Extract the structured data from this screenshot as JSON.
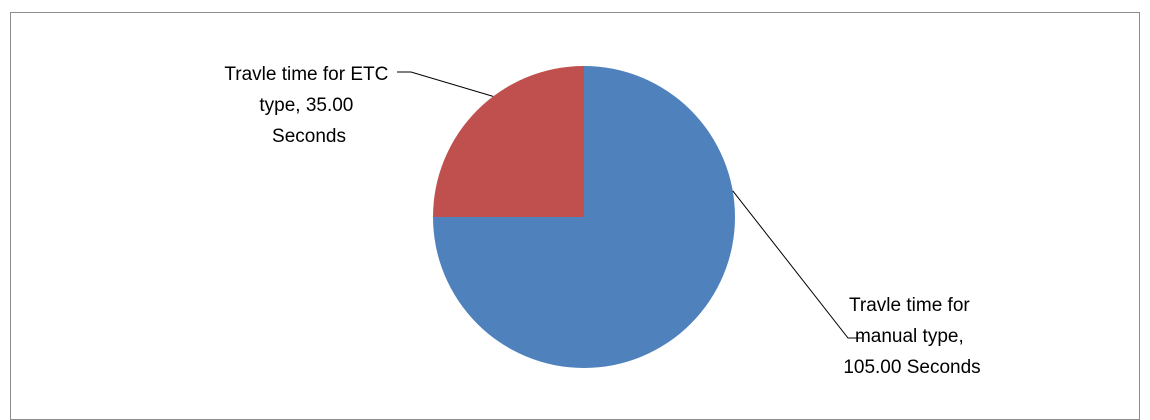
{
  "chart_data": {
    "type": "pie",
    "title": "",
    "legend": "none",
    "slices": [
      {
        "label_lines": [
          "Travle time for",
          "manual type,",
          "105.00 Seconds"
        ],
        "category": "Travle time for manual type",
        "value": 105.0,
        "color": "#4F81BD"
      },
      {
        "label_lines": [
          "Travle time for ETC",
          "type, 35.00",
          "Seconds"
        ],
        "category": "Travle time for ETC type",
        "value": 35.0,
        "color": "#C0504D"
      }
    ]
  }
}
